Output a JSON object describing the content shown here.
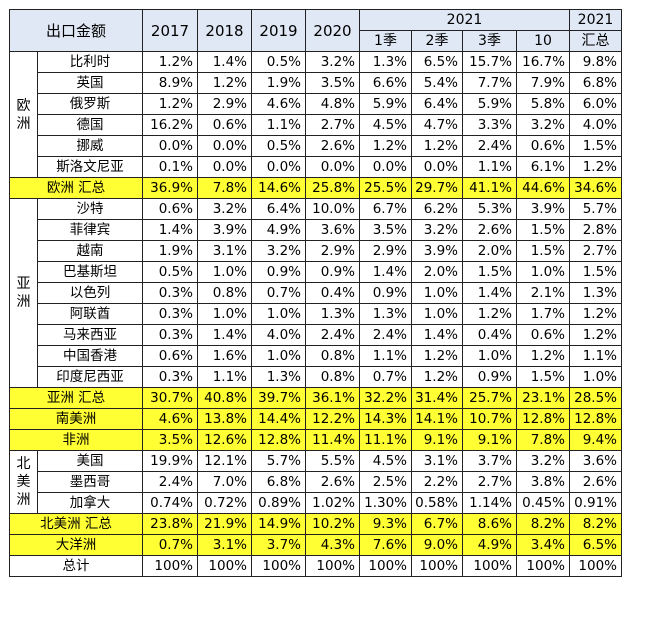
{
  "header": {
    "corner": "出口金额",
    "years": [
      "2017",
      "2018",
      "2019",
      "2020"
    ],
    "year2021": "2021",
    "quarters": [
      "1季",
      "2季",
      "3季",
      "10"
    ],
    "total_col_line1": "2021",
    "total_col_line2": "汇总"
  },
  "regions": {
    "europe": "欧\n洲",
    "asia": "亚\n洲",
    "north_america": "北\n美\n洲"
  },
  "rows": {
    "belgium": {
      "name": "比利时",
      "values": [
        "1.2%",
        "1.4%",
        "0.5%",
        "3.2%",
        "1.3%",
        "6.5%",
        "15.7%",
        "16.7%",
        "9.8%"
      ]
    },
    "uk": {
      "name": "英国",
      "values": [
        "8.9%",
        "1.2%",
        "1.9%",
        "3.5%",
        "6.6%",
        "5.4%",
        "7.7%",
        "7.9%",
        "6.8%"
      ]
    },
    "russia": {
      "name": "俄罗斯",
      "values": [
        "1.2%",
        "2.9%",
        "4.6%",
        "4.8%",
        "5.9%",
        "6.4%",
        "5.9%",
        "5.8%",
        "6.0%"
      ]
    },
    "germany": {
      "name": "德国",
      "values": [
        "16.2%",
        "0.6%",
        "1.1%",
        "2.7%",
        "4.5%",
        "4.7%",
        "3.3%",
        "3.2%",
        "4.0%"
      ]
    },
    "norway": {
      "name": "挪威",
      "values": [
        "0.0%",
        "0.0%",
        "0.5%",
        "2.6%",
        "1.2%",
        "1.2%",
        "2.4%",
        "0.6%",
        "1.5%"
      ]
    },
    "slovenia": {
      "name": "斯洛文尼亚",
      "values": [
        "0.1%",
        "0.0%",
        "0.0%",
        "0.0%",
        "0.0%",
        "0.0%",
        "1.1%",
        "6.1%",
        "1.2%"
      ]
    },
    "europe_total": {
      "name": "欧洲 汇总",
      "values": [
        "36.9%",
        "7.8%",
        "14.6%",
        "25.8%",
        "25.5%",
        "29.7%",
        "41.1%",
        "44.6%",
        "34.6%"
      ]
    },
    "saudi": {
      "name": "沙特",
      "values": [
        "0.6%",
        "3.2%",
        "6.4%",
        "10.0%",
        "6.7%",
        "6.2%",
        "5.3%",
        "3.9%",
        "5.7%"
      ]
    },
    "philippines": {
      "name": "菲律宾",
      "values": [
        "1.4%",
        "3.9%",
        "4.9%",
        "3.6%",
        "3.5%",
        "3.2%",
        "2.6%",
        "1.5%",
        "2.8%"
      ]
    },
    "vietnam": {
      "name": "越南",
      "values": [
        "1.9%",
        "3.1%",
        "3.2%",
        "2.9%",
        "2.9%",
        "3.9%",
        "2.0%",
        "1.5%",
        "2.7%"
      ]
    },
    "pakistan": {
      "name": "巴基斯坦",
      "values": [
        "0.5%",
        "1.0%",
        "0.9%",
        "0.9%",
        "1.4%",
        "2.0%",
        "1.5%",
        "1.0%",
        "1.5%"
      ]
    },
    "israel": {
      "name": "以色列",
      "values": [
        "0.3%",
        "0.8%",
        "0.7%",
        "0.4%",
        "0.9%",
        "1.0%",
        "1.4%",
        "2.1%",
        "1.3%"
      ]
    },
    "uae": {
      "name": "阿联酋",
      "values": [
        "0.3%",
        "1.0%",
        "1.0%",
        "1.3%",
        "1.3%",
        "1.0%",
        "1.2%",
        "1.7%",
        "1.2%"
      ]
    },
    "malaysia": {
      "name": "马来西亚",
      "values": [
        "0.3%",
        "1.4%",
        "4.0%",
        "2.4%",
        "2.4%",
        "1.4%",
        "0.4%",
        "0.6%",
        "1.2%"
      ]
    },
    "hongkong": {
      "name": "中国香港",
      "values": [
        "0.6%",
        "1.6%",
        "1.0%",
        "0.8%",
        "1.1%",
        "1.2%",
        "1.0%",
        "1.2%",
        "1.1%"
      ]
    },
    "indonesia": {
      "name": "印度尼西亚",
      "values": [
        "0.3%",
        "1.1%",
        "1.3%",
        "0.8%",
        "0.7%",
        "1.2%",
        "0.9%",
        "1.5%",
        "1.0%"
      ]
    },
    "asia_total": {
      "name": "亚洲 汇总",
      "values": [
        "30.7%",
        "40.8%",
        "39.7%",
        "36.1%",
        "32.2%",
        "31.4%",
        "25.7%",
        "23.1%",
        "28.5%"
      ]
    },
    "south_america": {
      "name": "南美洲",
      "values": [
        "4.6%",
        "13.8%",
        "14.4%",
        "12.2%",
        "14.3%",
        "14.1%",
        "10.7%",
        "12.8%",
        "12.8%"
      ]
    },
    "africa": {
      "name": "非洲",
      "values": [
        "3.5%",
        "12.6%",
        "12.8%",
        "11.4%",
        "11.1%",
        "9.1%",
        "9.1%",
        "7.8%",
        "9.4%"
      ]
    },
    "usa": {
      "name": "美国",
      "values": [
        "19.9%",
        "12.1%",
        "5.7%",
        "5.5%",
        "4.5%",
        "3.1%",
        "3.7%",
        "3.2%",
        "3.6%"
      ]
    },
    "mexico": {
      "name": "墨西哥",
      "values": [
        "2.4%",
        "7.0%",
        "6.8%",
        "2.6%",
        "2.5%",
        "2.2%",
        "2.7%",
        "3.8%",
        "2.6%"
      ]
    },
    "canada": {
      "name": "加拿大",
      "values": [
        "0.74%",
        "0.72%",
        "0.89%",
        "1.02%",
        "1.30%",
        "0.58%",
        "1.14%",
        "0.45%",
        "0.91%"
      ]
    },
    "na_total": {
      "name": "北美洲 汇总",
      "values": [
        "23.8%",
        "21.9%",
        "14.9%",
        "10.2%",
        "9.3%",
        "6.7%",
        "8.6%",
        "8.2%",
        "8.2%"
      ]
    },
    "oceania": {
      "name": "大洋洲",
      "values": [
        "0.7%",
        "3.1%",
        "3.7%",
        "4.3%",
        "7.6%",
        "9.0%",
        "4.9%",
        "3.4%",
        "6.5%"
      ]
    },
    "grand_total": {
      "name": "总计",
      "values": [
        "100%",
        "100%",
        "100%",
        "100%",
        "100%",
        "100%",
        "100%",
        "100%",
        "100%"
      ]
    }
  },
  "highlight_color": "#ffff33",
  "header_color": "#dfe8f4"
}
